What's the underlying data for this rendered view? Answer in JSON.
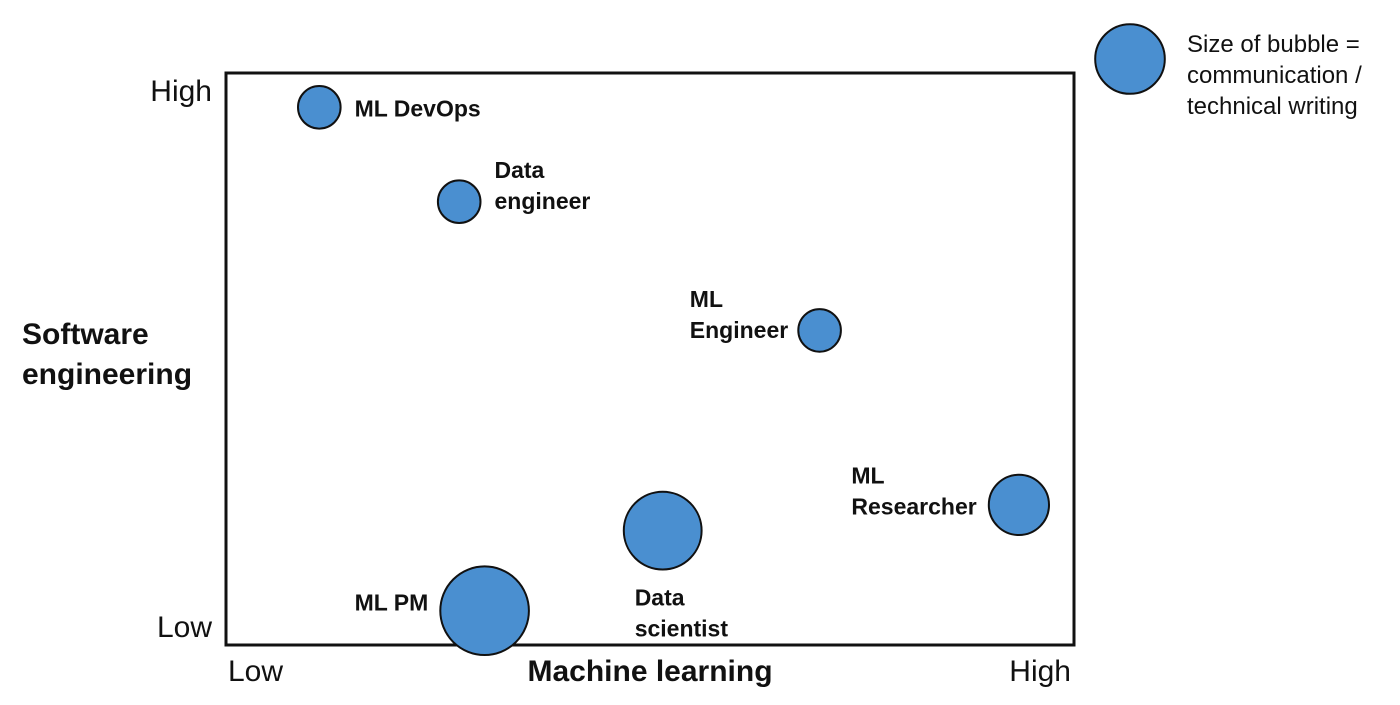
{
  "chart_data": {
    "type": "scatter",
    "title": "",
    "xlabel": "Machine learning",
    "ylabel": "Software engineering",
    "ylabel_lines": [
      "Software",
      "engineering"
    ],
    "x_tick_labels": [
      "Low",
      "High"
    ],
    "y_tick_labels": [
      "Low",
      "High"
    ],
    "xlim": [
      0,
      10
    ],
    "ylim": [
      0,
      10
    ],
    "grid": false,
    "legend_position": "top-right",
    "size_legend": {
      "label_lines": [
        "Size of bubble =",
        "communication /",
        "technical writing"
      ],
      "size": 8
    },
    "bubble_color": "#4a8fd0",
    "points": [
      {
        "label": "ML DevOps",
        "label_lines": [
          "ML DevOps"
        ],
        "x": 1.1,
        "y": 9.4,
        "size": 3
      },
      {
        "label": "Data engineer",
        "label_lines": [
          "Data",
          "engineer"
        ],
        "x": 2.75,
        "y": 7.75,
        "size": 3
      },
      {
        "label": "ML Engineer",
        "label_lines": [
          "ML",
          "Engineer"
        ],
        "x": 7.0,
        "y": 5.5,
        "size": 3
      },
      {
        "label": "ML Researcher",
        "label_lines": [
          "ML",
          "Researcher"
        ],
        "x": 9.35,
        "y": 2.45,
        "size": 6
      },
      {
        "label": "Data scientist",
        "label_lines": [
          "Data",
          "scientist"
        ],
        "x": 5.15,
        "y": 2.0,
        "size": 10
      },
      {
        "label": "ML PM",
        "label_lines": [
          "ML PM"
        ],
        "x": 3.05,
        "y": 0.6,
        "size": 13
      }
    ]
  }
}
